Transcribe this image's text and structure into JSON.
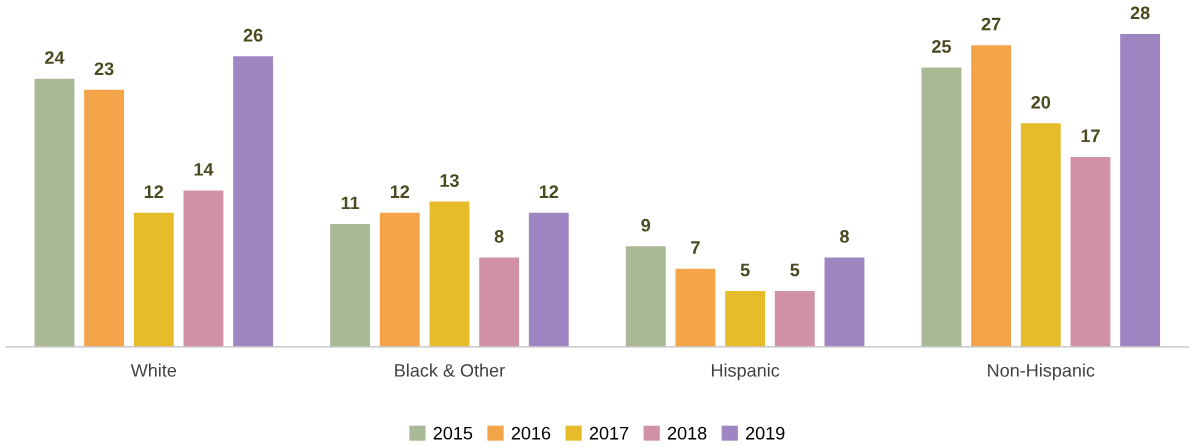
{
  "chart_data": {
    "type": "bar",
    "categories": [
      "White",
      "Black & Other",
      "Hispanic",
      "Non-Hispanic"
    ],
    "series": [
      {
        "name": "2015",
        "color": "#a9b996",
        "values": [
          24,
          11,
          9,
          25
        ]
      },
      {
        "name": "2016",
        "color": "#f4a448",
        "values": [
          23,
          12,
          7,
          27
        ]
      },
      {
        "name": "2017",
        "color": "#e6bc2a",
        "values": [
          12,
          13,
          5,
          20
        ]
      },
      {
        "name": "2018",
        "color": "#d292a6",
        "values": [
          14,
          8,
          5,
          17
        ]
      },
      {
        "name": "2019",
        "color": "#9e86c2",
        "values": [
          26,
          12,
          8,
          28
        ]
      }
    ],
    "data_labels": true,
    "grid": false,
    "legend": "bottom"
  }
}
